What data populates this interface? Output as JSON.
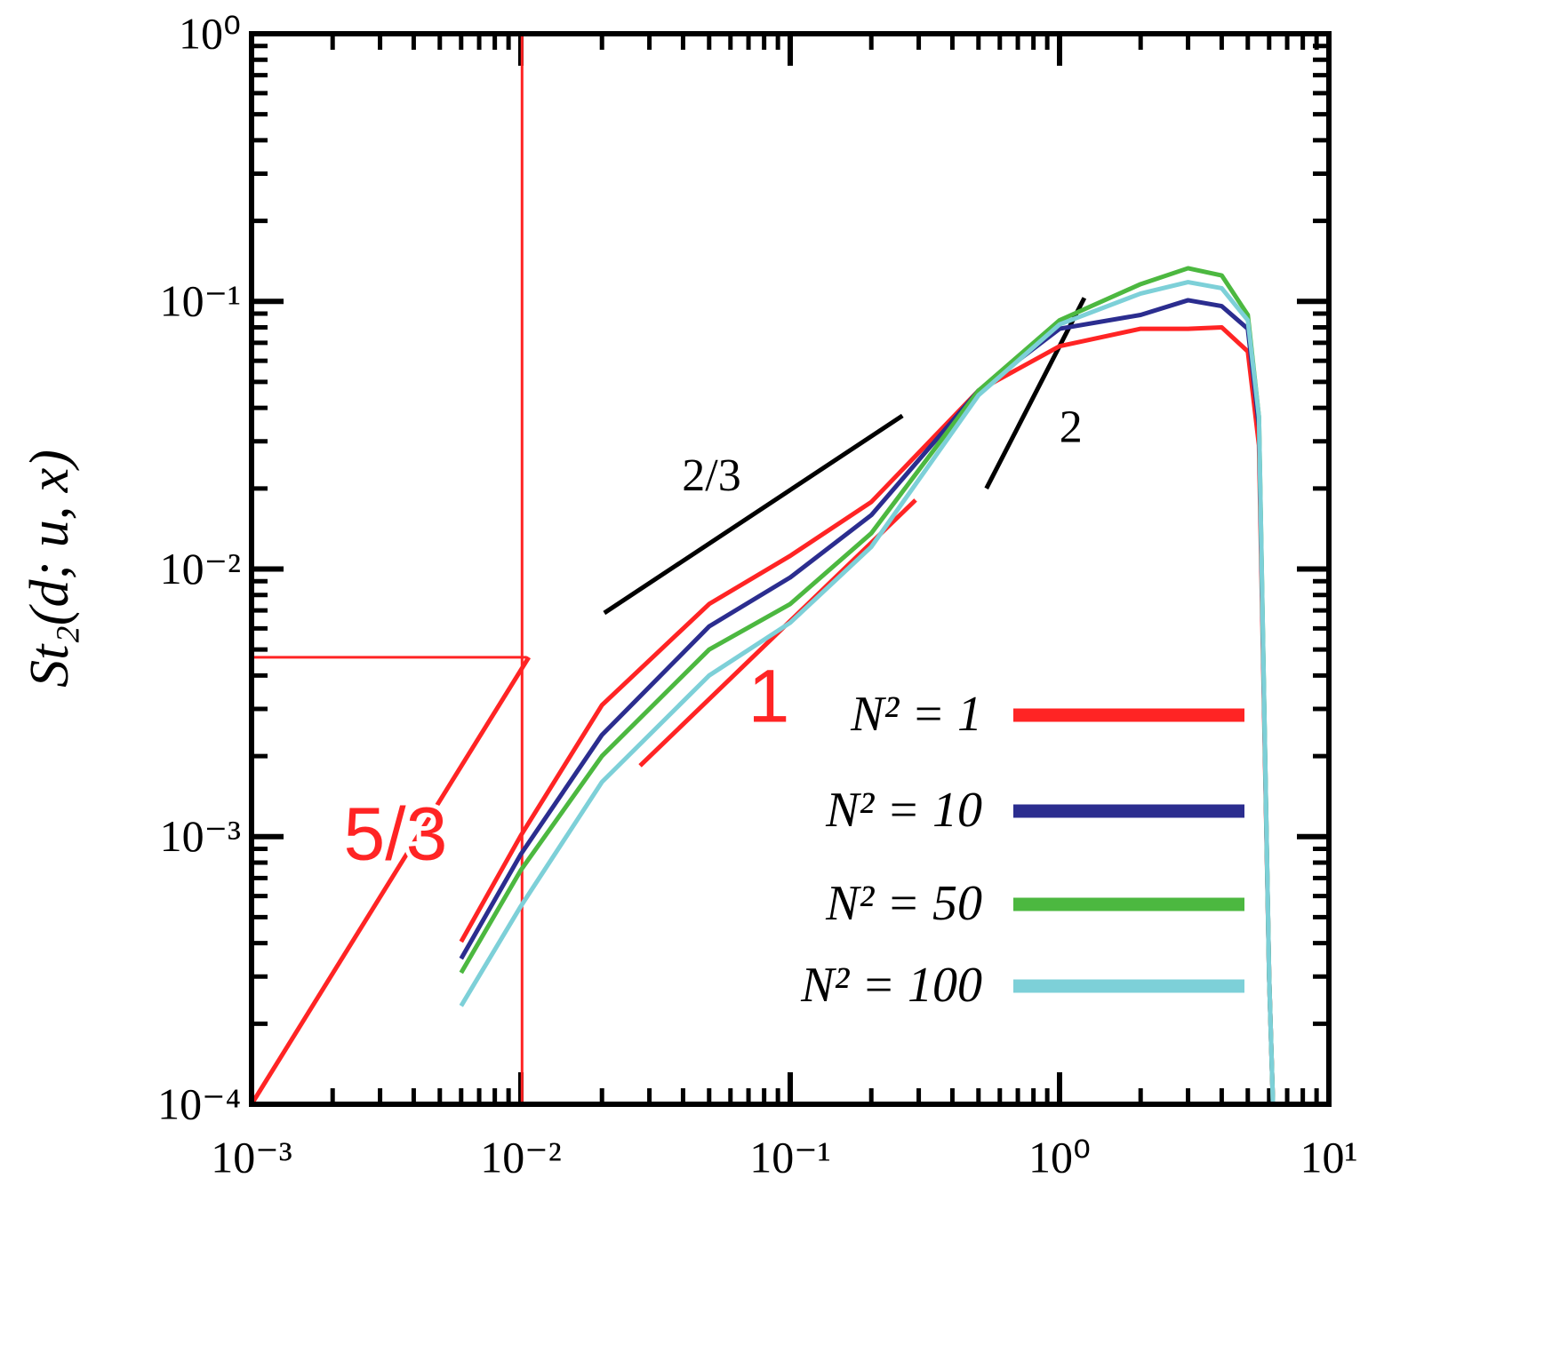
{
  "chart_data": {
    "type": "line",
    "ylabel": "St₂(d; u, x)",
    "xscale": "log",
    "yscale": "log",
    "xlim": [
      0.001,
      10
    ],
    "ylim": [
      0.0001,
      1
    ],
    "xticks": [
      {
        "value": 0.001,
        "label": "10⁻³"
      },
      {
        "value": 0.01,
        "label": "10⁻²"
      },
      {
        "value": 0.1,
        "label": "10⁻¹"
      },
      {
        "value": 1,
        "label": "10⁰"
      },
      {
        "value": 10,
        "label": "10¹"
      }
    ],
    "yticks": [
      {
        "value": 0.0001,
        "label": "10⁻⁴"
      },
      {
        "value": 0.001,
        "label": "10⁻³"
      },
      {
        "value": 0.01,
        "label": "10⁻²"
      },
      {
        "value": 0.1,
        "label": "10⁻¹"
      },
      {
        "value": 1,
        "label": "10⁰"
      }
    ],
    "minor_ticks": true,
    "legend": "lower right",
    "x": [
      0.006,
      0.01,
      0.02,
      0.05,
      0.1,
      0.2,
      0.5,
      1,
      2,
      3,
      4,
      5,
      5.5,
      6,
      6.2
    ],
    "series": [
      {
        "name": "N² = 1",
        "color": "#ff2424",
        "values": [
          0.000405,
          0.00101,
          0.0031,
          0.0074,
          0.0112,
          0.0178,
          0.0464,
          0.068,
          0.079,
          0.079,
          0.08,
          0.065,
          0.029,
          0.0003,
          0.0001
        ]
      },
      {
        "name": "N² = 10",
        "color": "#2b2d8f",
        "values": [
          0.00035,
          0.00086,
          0.0024,
          0.0061,
          0.0093,
          0.0159,
          0.0464,
          0.079,
          0.089,
          0.101,
          0.096,
          0.079,
          0.034,
          0.0003,
          0.0001
        ]
      },
      {
        "name": "N² = 50",
        "color": "#4cb840",
        "values": [
          0.00031,
          0.00075,
          0.002,
          0.005,
          0.0074,
          0.0136,
          0.0464,
          0.085,
          0.116,
          0.133,
          0.125,
          0.089,
          0.037,
          0.0003,
          0.0001
        ]
      },
      {
        "name": "N² = 100",
        "color": "#7dd0d8",
        "values": [
          0.000233,
          0.00055,
          0.0016,
          0.004,
          0.0063,
          0.0121,
          0.0446,
          0.082,
          0.107,
          0.118,
          0.112,
          0.085,
          0.037,
          0.0003,
          0.0001
        ]
      }
    ],
    "reference_lines": [
      {
        "label": "2/3",
        "color": "#000000",
        "x": [
          0.0204,
          0.261
        ],
        "y": [
          0.00685,
          0.0374
        ]
      },
      {
        "label": "2",
        "color": "#000000",
        "x": [
          0.535,
          1.236
        ],
        "y": [
          0.02,
          0.103
        ]
      },
      {
        "label": "1",
        "color": "#ff2424",
        "x": [
          0.0277,
          0.292
        ],
        "y": [
          0.00184,
          0.0181
        ]
      },
      {
        "label": "5/3",
        "color": "#ff2424",
        "x": [
          0.001,
          0.0107
        ],
        "y": [
          0.0001,
          0.00468
        ]
      },
      {
        "color": "#ff2424",
        "x": [
          0.0101,
          0.0101
        ],
        "y": [
          0.0001,
          1
        ]
      },
      {
        "color": "#ff2424",
        "x": [
          0.001,
          0.0105
        ],
        "y": [
          0.00468,
          0.00468
        ]
      }
    ]
  }
}
